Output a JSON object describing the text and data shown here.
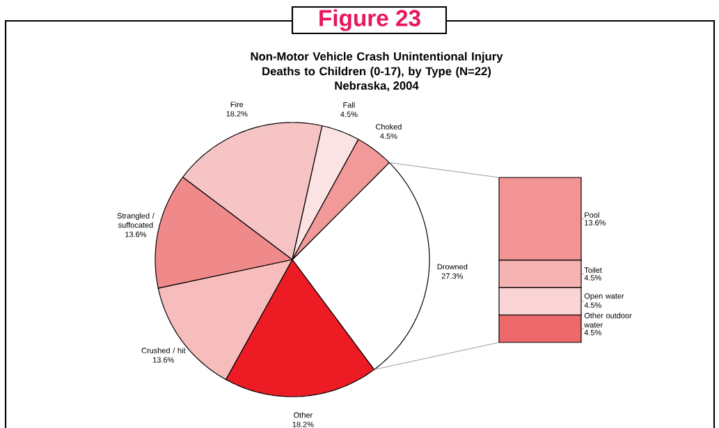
{
  "chart_data": [
    {
      "type": "pie",
      "title": "Non-Motor Vehicle Crash Unintentional Injury Deaths to Children (0-17), by Type (N=22)",
      "subtitle": "Nebraska, 2004",
      "annotations": [
        "Figure 23"
      ],
      "categories": [
        "Drowned",
        "Other",
        "Crushed / hit",
        "Strangled / suffocated",
        "Fire",
        "Fall",
        "Choked"
      ],
      "values": [
        27.3,
        18.2,
        13.6,
        13.6,
        18.2,
        4.5,
        4.5
      ],
      "value_labels": [
        "27.3%",
        "18.2%",
        "13.6%",
        "13.6%",
        "18.2%",
        "4.5%",
        "4.5%"
      ],
      "colors": [
        "#ffffff",
        "#ed1c24",
        "#f7bcbc",
        "#f08a8a",
        "#f6c4c4",
        "#fbe3e3",
        "#f29a9a"
      ]
    },
    {
      "type": "bar",
      "stacked": true,
      "categories": [
        null
      ],
      "series": [
        {
          "name": "Other outdoor water",
          "color": "#ee6a6a",
          "values": [
            4.5
          ],
          "value_labels": [
            "4.5%"
          ]
        },
        {
          "name": "Open water",
          "color": "#fad4d4",
          "values": [
            4.5
          ],
          "value_labels": [
            "4.5%"
          ]
        },
        {
          "name": "Toilet",
          "color": "#f6b3b3",
          "values": [
            4.5
          ],
          "value_labels": [
            "4.5%"
          ]
        },
        {
          "name": "Pool",
          "color": "#f29494",
          "values": [
            13.6
          ],
          "value_labels": [
            "13.6%"
          ]
        }
      ]
    }
  ]
}
